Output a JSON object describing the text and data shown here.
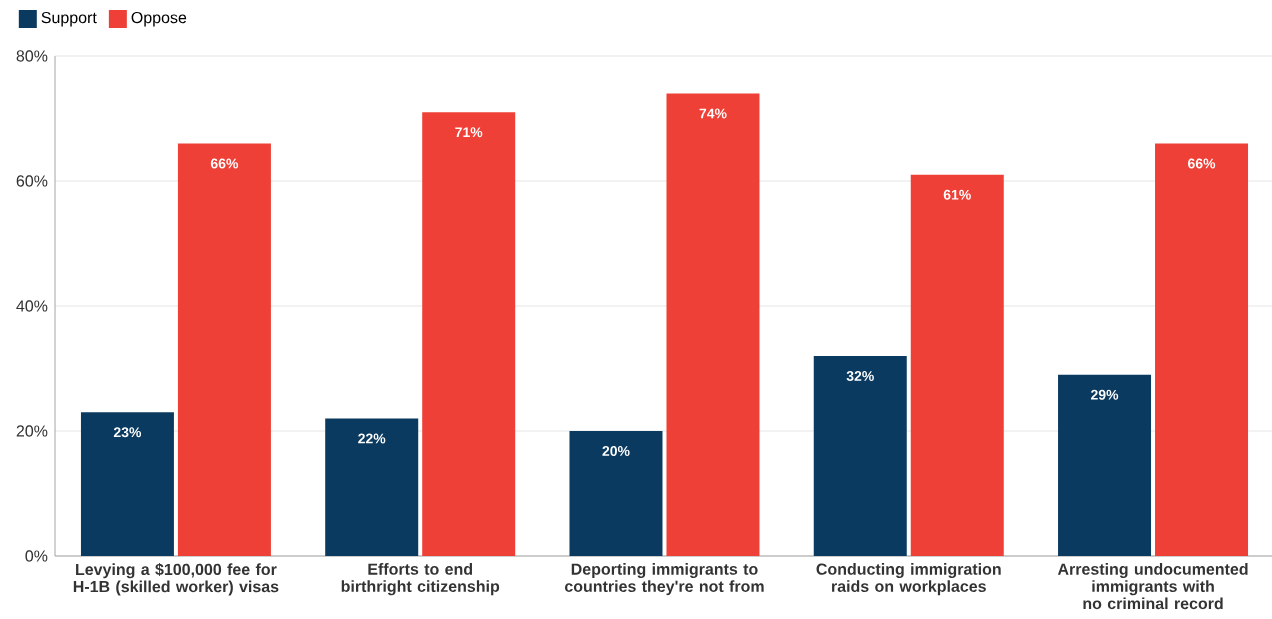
{
  "chart_data": {
    "type": "bar",
    "categories": [
      "Levying a $100,000 fee for H-1B (skilled worker) visas",
      "Efforts to end birthright citizenship",
      "Deporting immigrants to countries they're not from",
      "Conducting immigration raids on workplaces",
      "Arresting undocumented immigrants with no criminal record"
    ],
    "series": [
      {
        "name": "Support",
        "color": "#0b3a60",
        "values": [
          23,
          22,
          20,
          32,
          29
        ],
        "value_labels": [
          "23%",
          "22%",
          "20%",
          "32%",
          "29%"
        ]
      },
      {
        "name": "Oppose",
        "color": "#ee4036",
        "values": [
          66,
          71,
          74,
          61,
          66
        ],
        "value_labels": [
          "66%",
          "71%",
          "74%",
          "61%",
          "66%"
        ]
      }
    ],
    "ylim": [
      0,
      80
    ],
    "yticks": [
      {
        "value": 0,
        "label": "0%"
      },
      {
        "value": 20,
        "label": "20%"
      },
      {
        "value": 40,
        "label": "40%"
      },
      {
        "value": 60,
        "label": "60%"
      },
      {
        "value": 80,
        "label": "80%"
      }
    ],
    "grid": "y",
    "legend": "top left"
  }
}
